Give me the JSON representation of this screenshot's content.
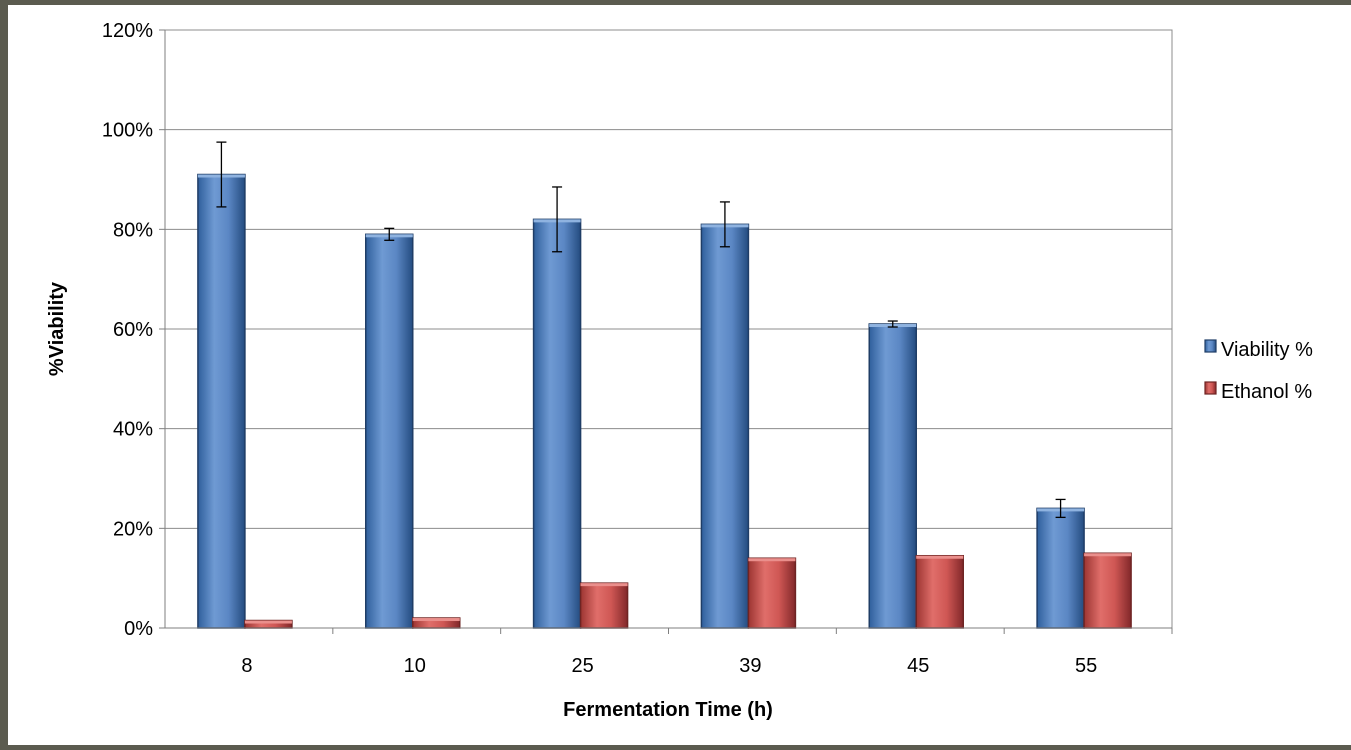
{
  "chart_data": {
    "type": "bar",
    "categories": [
      "8",
      "10",
      "25",
      "39",
      "45",
      "55"
    ],
    "series": [
      {
        "name": "Viability %",
        "values": [
          91,
          79,
          82,
          81,
          61,
          24
        ],
        "errors": [
          6.5,
          1.2,
          6.5,
          4.5,
          0.6,
          1.8
        ],
        "color": "#4f81bd"
      },
      {
        "name": "Ethanol %",
        "values": [
          1.5,
          2,
          9,
          14,
          14.5,
          15
        ],
        "color": "#c0504d"
      }
    ],
    "title": "",
    "xlabel": "Fermentation Time (h)",
    "ylabel": "%Viability",
    "ylim": [
      0,
      120
    ],
    "yticks": [
      "0%",
      "20%",
      "40%",
      "60%",
      "80%",
      "100%",
      "120%"
    ],
    "grid": true,
    "legend": "right"
  }
}
